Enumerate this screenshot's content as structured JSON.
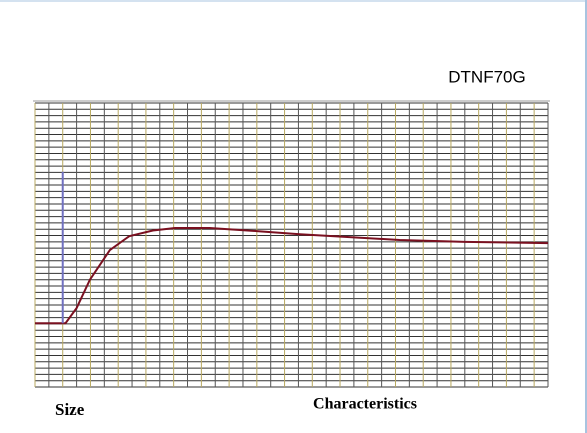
{
  "chart_data": {
    "type": "line",
    "title": "DTNF70G",
    "x_label": "Characteristics",
    "y_label": "Size",
    "xlim": [
      0,
      37
    ],
    "ylim": [
      0,
      45
    ],
    "grid_step": 1,
    "grid": true,
    "series": [
      {
        "name": null,
        "color": "#7a1020",
        "x": [
          0,
          2.2,
          3,
          3.96,
          5.4,
          6.8,
          8.5,
          10.1,
          12.6,
          16,
          19.1,
          23,
          26.3,
          31,
          37
        ],
        "values": [
          10.1,
          10.1,
          12.5,
          17,
          21.7,
          23.9,
          24.8,
          25.2,
          25.2,
          24.7,
          24.2,
          23.7,
          23.3,
          23,
          22.8
        ]
      },
      {
        "name": null,
        "color": "#7070c0",
        "x": [
          2,
          2
        ],
        "values": [
          10.1,
          34.1
        ]
      }
    ]
  }
}
